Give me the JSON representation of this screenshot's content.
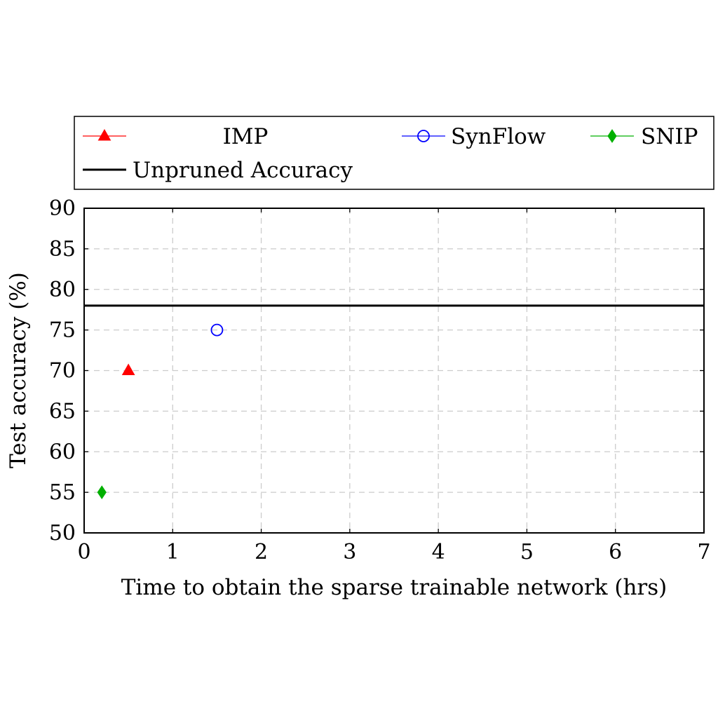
{
  "chart_data": {
    "type": "scatter",
    "title": "",
    "xlabel": "Time to obtain the sparse trainable network (hrs)",
    "ylabel": "Test accuracy (%)",
    "xlim": [
      0,
      7
    ],
    "ylim": [
      50,
      90
    ],
    "xticks": [
      0,
      1,
      2,
      3,
      4,
      5,
      6,
      7
    ],
    "yticks": [
      50,
      55,
      60,
      65,
      70,
      75,
      80,
      85,
      90
    ],
    "grid": true,
    "legend_position": "top (above plot)",
    "series": [
      {
        "name": "IMP",
        "marker": "triangle",
        "color": "#ff0000",
        "points": [
          {
            "x": 0.5,
            "y": 70
          }
        ]
      },
      {
        "name": "SynFlow",
        "marker": "circle-open",
        "color": "#0000ff",
        "points": [
          {
            "x": 1.5,
            "y": 75
          }
        ]
      },
      {
        "name": "SNIP",
        "marker": "diamond",
        "color": "#00b000",
        "points": [
          {
            "x": 0.2,
            "y": 55
          }
        ]
      }
    ],
    "reference_lines": [
      {
        "name": "Unpruned Accuracy",
        "y": 78,
        "color": "#000000"
      }
    ]
  }
}
